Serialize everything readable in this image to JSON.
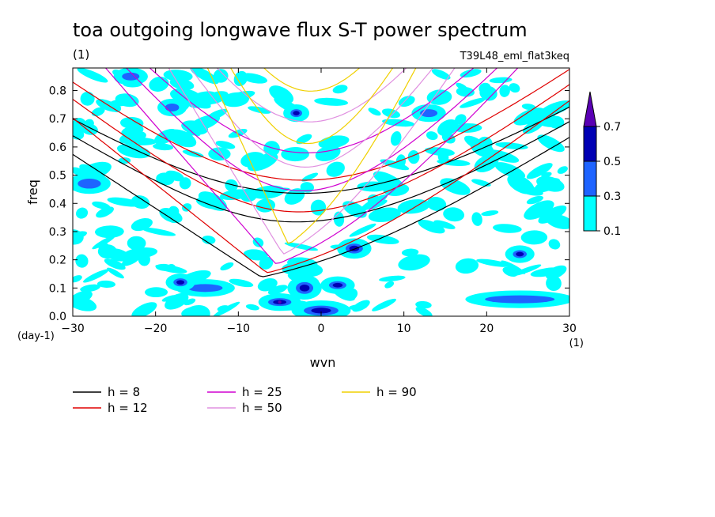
{
  "chart_data": {
    "type": "contour",
    "title": "toa outgoing longwave flux S-T power spectrum",
    "title_units": "(1)",
    "experiment": "T39L48_eml_flat3keq",
    "xlabel": "wvn",
    "ylabel": "freq",
    "x_units": "(1)",
    "y_units": "(day-1)",
    "xlim": [
      -30,
      30
    ],
    "ylim": [
      0,
      0.88
    ],
    "x_ticks": [
      -30,
      -20,
      -10,
      0,
      10,
      20,
      30
    ],
    "y_ticks": [
      0.0,
      0.1,
      0.2,
      0.3,
      0.4,
      0.5,
      0.6,
      0.7,
      0.8
    ],
    "colorbar": {
      "levels": [
        "0.1",
        "0.3",
        "0.5",
        "0.7"
      ],
      "colors": [
        "#00ffff",
        "#1e64ff",
        "#0000b4",
        "#5a00b4"
      ],
      "extend": "max"
    },
    "dispersion_curves": [
      {
        "name": "h =  8",
        "h": 8,
        "color": "#000000"
      },
      {
        "name": "h = 12",
        "h": 12,
        "color": "#e00000"
      },
      {
        "name": "h = 25",
        "h": 25,
        "color": "#d000d0"
      },
      {
        "name": "h = 50",
        "h": 50,
        "color": "#e090e0"
      },
      {
        "name": "h = 90",
        "h": 90,
        "color": "#f0d000"
      }
    ],
    "power_patches": [
      {
        "x": -2,
        "y": 0.1,
        "rx": 1.5,
        "ry": 0.03,
        "level": 2
      },
      {
        "x": 0,
        "y": 0.02,
        "rx": 3,
        "ry": 0.025,
        "level": 2
      },
      {
        "x": -5,
        "y": 0.05,
        "rx": 2,
        "ry": 0.02,
        "level": 3
      },
      {
        "x": 24,
        "y": 0.06,
        "rx": 6,
        "ry": 0.02,
        "level": 1
      },
      {
        "x": -14,
        "y": 0.1,
        "rx": 3,
        "ry": 0.02,
        "level": 1
      },
      {
        "x": 4,
        "y": 0.24,
        "rx": 1.5,
        "ry": 0.025,
        "level": 2
      },
      {
        "x": -17,
        "y": 0.12,
        "rx": 1.2,
        "ry": 0.02,
        "level": 2
      },
      {
        "x": 2,
        "y": 0.11,
        "rx": 1.5,
        "ry": 0.02,
        "level": 2
      },
      {
        "x": -28,
        "y": 0.47,
        "rx": 2,
        "ry": 0.025,
        "level": 1
      },
      {
        "x": -23,
        "y": 0.85,
        "rx": 1.5,
        "ry": 0.02,
        "level": 1
      },
      {
        "x": 24,
        "y": 0.22,
        "rx": 1.2,
        "ry": 0.02,
        "level": 2
      },
      {
        "x": -3,
        "y": 0.72,
        "rx": 1,
        "ry": 0.02,
        "level": 2
      },
      {
        "x": 13,
        "y": 0.72,
        "rx": 1.5,
        "ry": 0.02,
        "level": 1
      },
      {
        "x": -18,
        "y": 0.74,
        "rx": 1.2,
        "ry": 0.02,
        "level": 1
      }
    ]
  },
  "legend": {
    "entries": [
      "h =  8",
      "h = 25",
      "h = 90",
      "h = 12",
      "h = 50"
    ]
  }
}
